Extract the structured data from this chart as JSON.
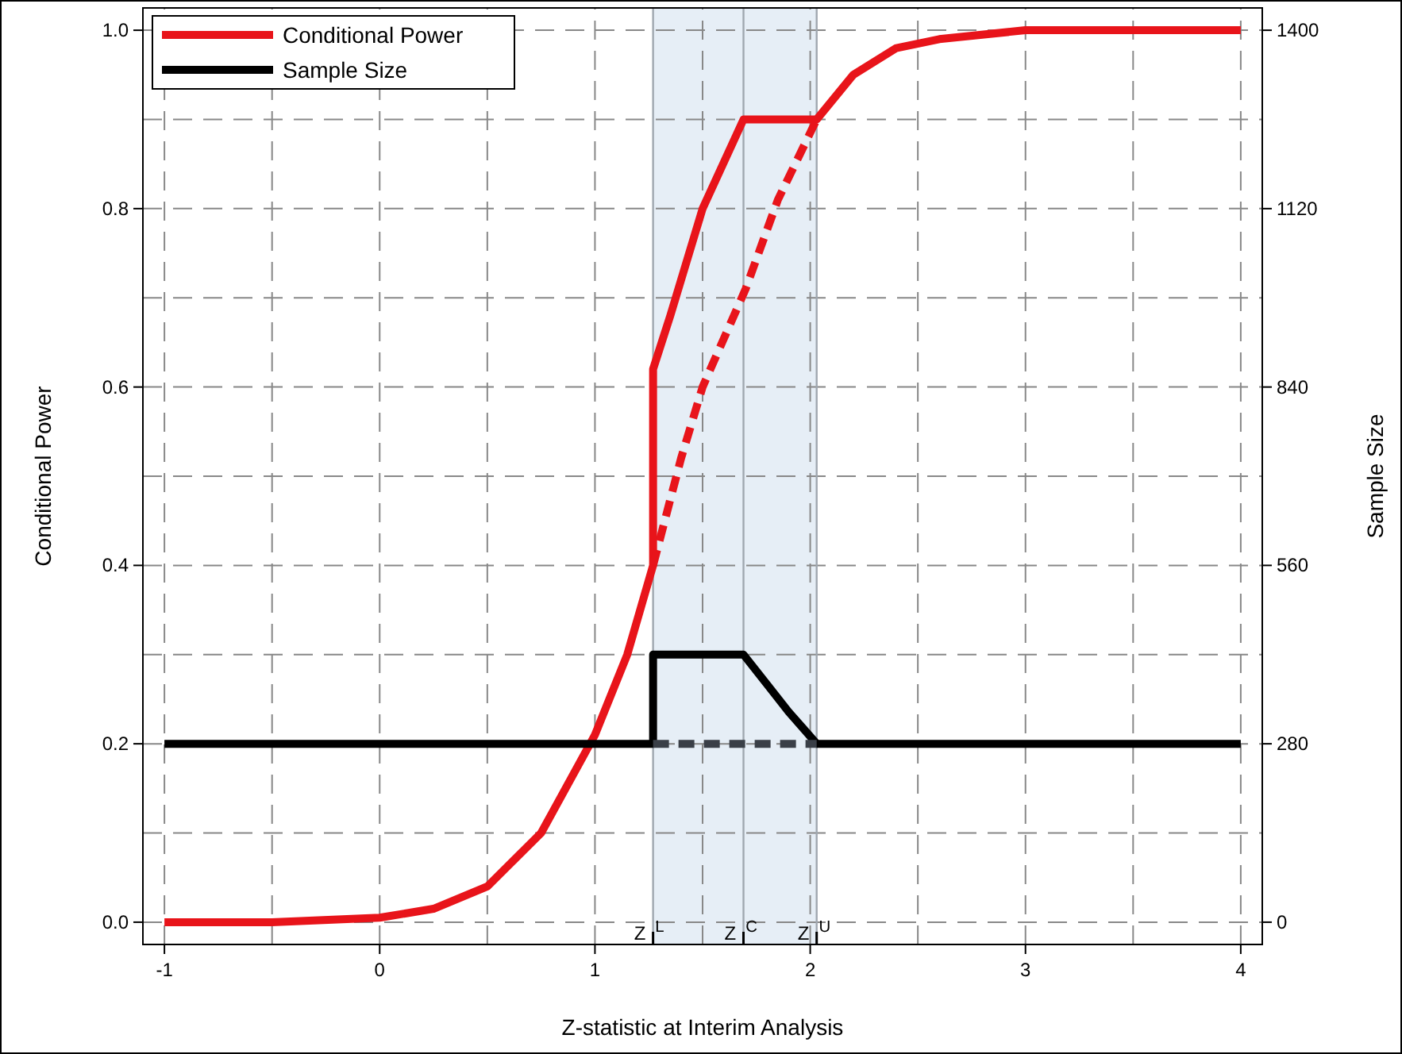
{
  "chart_data": {
    "type": "line",
    "xlabel": "Z-statistic at Interim Analysis",
    "ylabel": "Conditional Power",
    "y2label": "Sample Size",
    "xlim": [
      -1.1,
      4.1
    ],
    "ylim": [
      -0.025,
      1.025
    ],
    "y2lim": [
      -35,
      1435
    ],
    "xticks": [
      -1,
      {
        "value": -0.5,
        "label": null
      },
      0,
      {
        "value": 0.5,
        "label": null
      },
      1,
      {
        "value": 1.5,
        "label": null
      },
      2,
      {
        "value": 2.5,
        "label": null
      },
      3,
      {
        "value": 3.5,
        "label": null
      },
      4
    ],
    "yticks": [
      {
        "value": 0,
        "label": "0.0"
      },
      {
        "value": 0.1,
        "label": null
      },
      0.2,
      {
        "value": 0.3,
        "label": null
      },
      0.4,
      {
        "value": 0.5,
        "label": null
      },
      0.6,
      {
        "value": 0.7,
        "label": null
      },
      0.8,
      {
        "value": 0.9,
        "label": null
      },
      {
        "value": 1,
        "label": "1.0"
      }
    ],
    "y2ticks": [
      0,
      280,
      560,
      840,
      1120,
      1400
    ],
    "grid": true,
    "legend": "top left",
    "bands": [
      {
        "axis": "x",
        "from": 1.27,
        "to": 2.03,
        "color": "#e6eef6"
      }
    ],
    "ref_lines": [
      {
        "axis": "x",
        "value": 1.27,
        "label": "Z$^{L}$",
        "color": "#a0a8b0"
      },
      {
        "axis": "x",
        "value": 1.69,
        "label": "Z$^{C}$",
        "color": "#a0a8b0"
      },
      {
        "axis": "x",
        "value": 2.03,
        "label": "Z$^{U}$",
        "color": "#a0a8b0"
      }
    ],
    "series": [
      {
        "name": "Conditional Power",
        "color": "#e8141a",
        "line_style": "solid",
        "x": [
          -1,
          -0.5,
          0,
          0.25,
          0.5,
          0.75,
          1,
          1.15,
          1.27,
          1.27,
          1.35,
          1.5,
          1.69,
          2.03,
          2.2,
          2.4,
          2.6,
          3,
          4
        ],
        "values": [
          0,
          0,
          0.005,
          0.015,
          0.04,
          0.1,
          0.21,
          0.3,
          0.4,
          0.62,
          0.68,
          0.8,
          0.9,
          0.9,
          0.95,
          0.98,
          0.99,
          1,
          1
        ]
      },
      {
        "color": "#e8141a",
        "line_style": "dashed",
        "x": [
          1.27,
          1.4,
          1.5,
          1.7,
          1.85,
          2.03
        ],
        "values": [
          0.4,
          0.52,
          0.6,
          0.71,
          0.81,
          0.9
        ]
      },
      {
        "name": "Sample Size",
        "axis": "y2",
        "color": "#000000",
        "line_style": "solid",
        "x": [
          -1,
          1.27,
          1.27,
          1.69,
          1.8,
          1.9,
          2.03,
          4
        ],
        "values": [
          280,
          280,
          420,
          420,
          373,
          330,
          280,
          280
        ]
      },
      {
        "axis": "y2",
        "color": "#3a3f47",
        "line_style": "dashed",
        "x": [
          1.27,
          2.03
        ],
        "values": [
          280,
          280
        ]
      }
    ]
  }
}
